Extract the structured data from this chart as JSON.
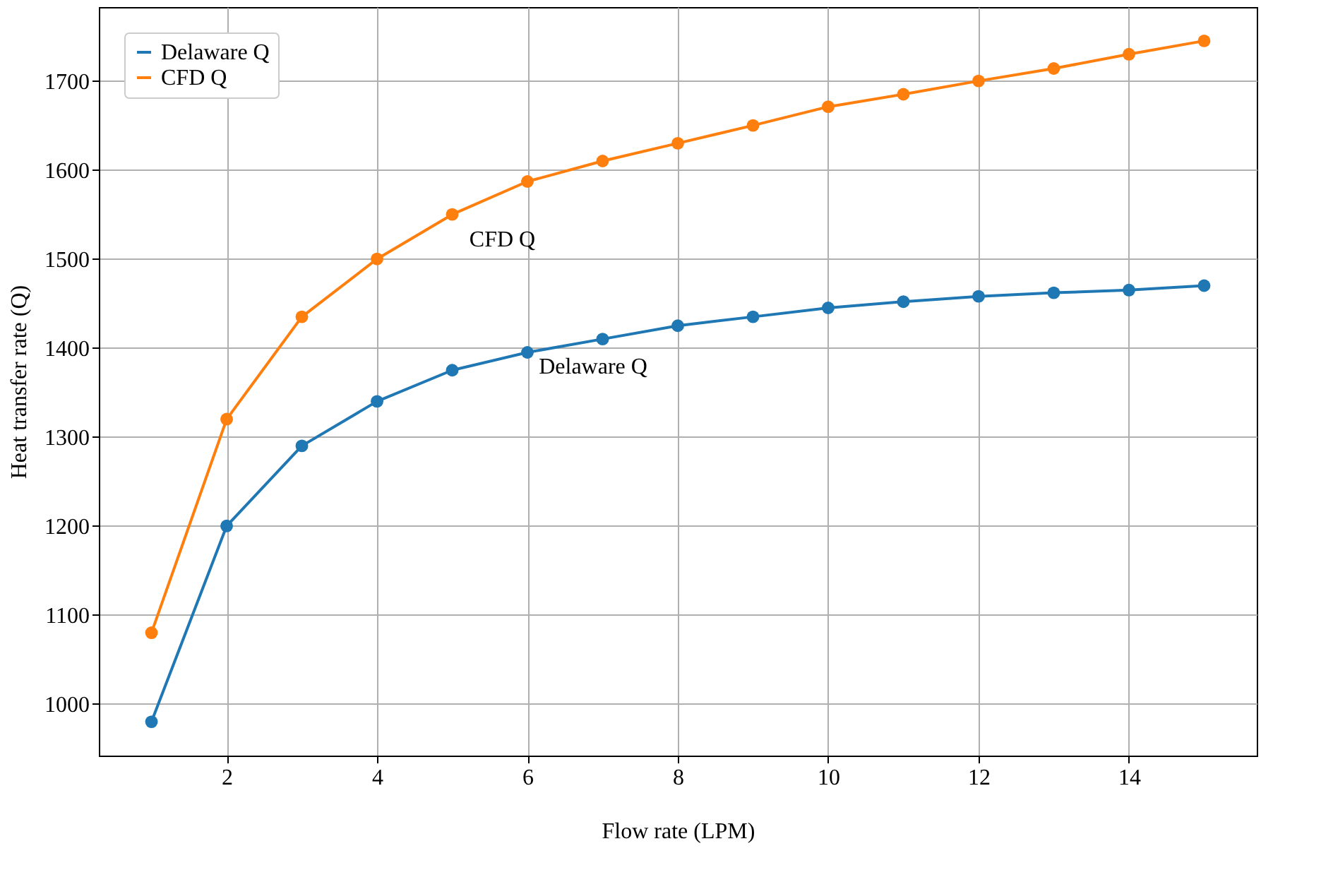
{
  "chart_data": {
    "type": "line",
    "xlabel": "Flow rate (LPM)",
    "ylabel": "Heat transfer rate (Q)",
    "x": [
      1,
      2,
      3,
      4,
      5,
      6,
      7,
      8,
      9,
      10,
      11,
      12,
      13,
      14,
      15
    ],
    "series": [
      {
        "name": "Delaware Q",
        "color": "#1f77b4",
        "values": [
          980,
          1200,
          1290,
          1340,
          1375,
          1395,
          1410,
          1425,
          1435,
          1445,
          1452,
          1458,
          1462,
          1465,
          1470
        ]
      },
      {
        "name": "CFD Q",
        "color": "#ff7f0e",
        "values": [
          1080,
          1320,
          1435,
          1500,
          1550,
          1587,
          1610,
          1630,
          1650,
          1671,
          1685,
          1700,
          1714,
          1730,
          1745
        ]
      }
    ],
    "xlim": [
      0.3,
      15.7
    ],
    "ylim": [
      942,
      1783
    ],
    "xticks": [
      2,
      4,
      6,
      8,
      10,
      12,
      14
    ],
    "yticks": [
      1000,
      1100,
      1200,
      1300,
      1400,
      1500,
      1600,
      1700
    ],
    "annotations": [
      "CFD Q",
      "Delaware Q"
    ],
    "grid": true,
    "legend": "top left",
    "marker": "circle",
    "line_style": "solid"
  }
}
